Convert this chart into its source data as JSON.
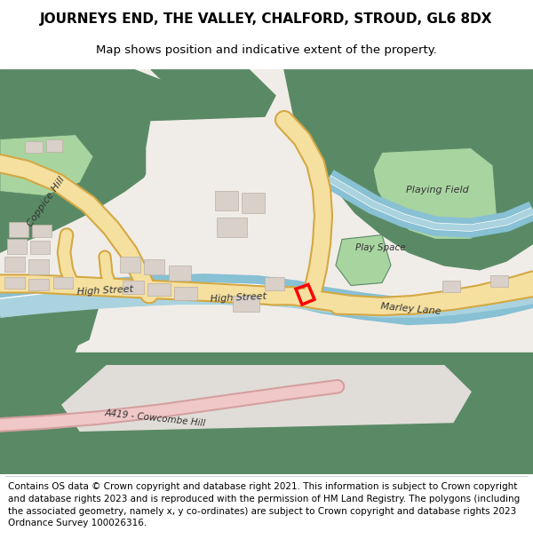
{
  "title": "JOURNEYS END, THE VALLEY, CHALFORD, STROUD, GL6 8DX",
  "subtitle": "Map shows position and indicative extent of the property.",
  "footer": "Contains OS data © Crown copyright and database right 2021. This information is subject to Crown copyright and database rights 2023 and is reproduced with the permission of HM Land Registry. The polygons (including the associated geometry, namely x, y co-ordinates) are subject to Crown copyright and database rights 2023 Ordnance Survey 100026316.",
  "bg_color": "#ffffff",
  "map_bg": "#f0ede8",
  "green_dark": "#5a8a65",
  "green_light": "#a8d4a0",
  "road_color": "#f5e0a0",
  "road_edge": "#d4a843",
  "water_color": "#aad3df",
  "water_edge": "#88c0d4",
  "building_color": "#d9d0c9",
  "building_edge": "#bbb0a5",
  "plot_color": "#ff0000",
  "pink_road": "#f0c8c8",
  "pink_road_edge": "#d4a0a0",
  "title_fontsize": 11,
  "subtitle_fontsize": 9.5,
  "footer_fontsize": 7.5
}
